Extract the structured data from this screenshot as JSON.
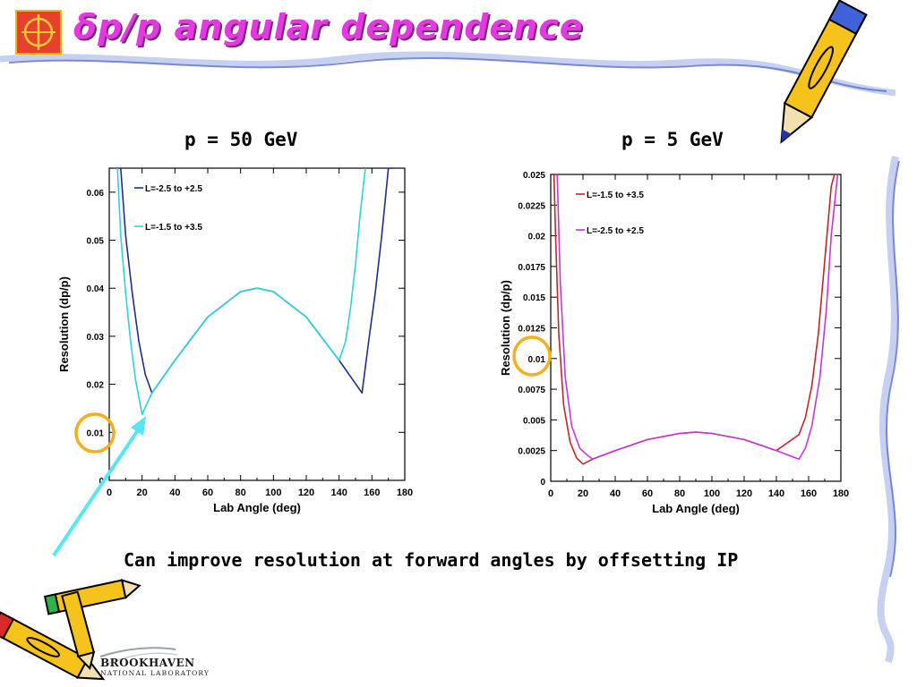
{
  "slide": {
    "title": "δp/p angular dependence",
    "caption": "Can improve resolution at forward angles by offsetting IP",
    "lab_name": "BROOKHAVEN",
    "lab_sub": "NATIONAL LABORATORY",
    "colors": {
      "title": "#e23ae0",
      "circle": "#f2b01e",
      "arrow": "#56e6f5"
    }
  },
  "chart_data": [
    {
      "type": "line",
      "title": "p = 50 GeV",
      "xlabel": "Lab Angle (deg)",
      "ylabel": "Resolution (dp/p)",
      "xlim": [
        0,
        180
      ],
      "ylim": [
        0,
        0.065
      ],
      "x_ticks": [
        0,
        20,
        40,
        60,
        80,
        100,
        120,
        140,
        160,
        180
      ],
      "x_tick_labels": [
        "0",
        "20",
        "40",
        "60",
        "80",
        "100",
        "120",
        "140",
        "160",
        "180"
      ],
      "y_ticks": [
        0,
        0.01,
        0.02,
        0.03,
        0.04,
        0.05,
        0.06
      ],
      "y_tick_labels": [
        "0",
        "0.01",
        "0.02",
        "0.03",
        "0.04",
        "0.05",
        "0.06"
      ],
      "legend_position": "top-left",
      "highlighted_tick": "0.01",
      "series": [
        {
          "name": "L=-2.5 to +2.5",
          "color": "#1f2e8a",
          "x": [
            7,
            10,
            14,
            18,
            22,
            26,
            40,
            60,
            80,
            90,
            100,
            120,
            140,
            154,
            158,
            162,
            166,
            170,
            173
          ],
          "y": [
            0.065,
            0.051,
            0.039,
            0.029,
            0.022,
            0.0182,
            0.025,
            0.034,
            0.0393,
            0.04,
            0.0393,
            0.034,
            0.025,
            0.0182,
            0.029,
            0.039,
            0.051,
            0.065,
            0.065
          ]
        },
        {
          "name": "L=-1.5 to +3.5",
          "color": "#2ed3d8",
          "x": [
            5,
            7,
            10,
            13,
            16,
            20,
            23,
            26,
            40,
            60,
            80,
            90,
            100,
            120,
            140,
            144,
            147,
            150,
            153,
            156
          ],
          "y": [
            0.065,
            0.051,
            0.039,
            0.029,
            0.021,
            0.0137,
            0.016,
            0.0182,
            0.025,
            0.034,
            0.0393,
            0.04,
            0.0393,
            0.034,
            0.025,
            0.029,
            0.036,
            0.045,
            0.056,
            0.065
          ]
        }
      ]
    },
    {
      "type": "line",
      "title": "p = 5 GeV",
      "xlabel": "Lab Angle (deg)",
      "ylabel": "Resolution (dp/p)",
      "xlim": [
        0,
        180
      ],
      "ylim": [
        0,
        0.025
      ],
      "x_ticks": [
        0,
        20,
        40,
        60,
        80,
        100,
        120,
        140,
        160,
        180
      ],
      "x_tick_labels": [
        "0",
        "20",
        "40",
        "60",
        "80",
        "100",
        "120",
        "140",
        "160",
        "180"
      ],
      "y_ticks": [
        0,
        0.0025,
        0.005,
        0.0075,
        0.01,
        0.0125,
        0.015,
        0.0175,
        0.02,
        0.0225,
        0.025
      ],
      "y_tick_labels": [
        "0",
        "0.0025",
        "0.005",
        "0.0075",
        "0.01",
        "0.0125",
        "0.015",
        "0.0175",
        "0.02",
        "0.0225",
        "0.025"
      ],
      "legend_position": "top-left",
      "highlighted_tick": "0.01",
      "series": [
        {
          "name": "L=-1.5 to +3.5",
          "color": "#c0272d",
          "x": [
            2,
            3,
            5,
            8,
            12,
            16,
            20,
            26,
            40,
            60,
            80,
            90,
            100,
            120,
            140,
            154,
            158,
            162,
            166,
            170,
            174,
            176
          ],
          "y": [
            0.025,
            0.02,
            0.012,
            0.0062,
            0.0032,
            0.0019,
            0.0014,
            0.0018,
            0.0025,
            0.0034,
            0.0039,
            0.004,
            0.0039,
            0.0034,
            0.0025,
            0.0038,
            0.0052,
            0.0078,
            0.012,
            0.018,
            0.024,
            0.025
          ]
        },
        {
          "name": "L=-2.5 to +2.5",
          "color": "#c23ad4",
          "x": [
            4,
            6,
            9,
            13,
            18,
            22,
            26,
            40,
            60,
            80,
            90,
            100,
            120,
            140,
            154,
            158,
            162,
            167,
            171,
            174,
            178
          ],
          "y": [
            0.025,
            0.016,
            0.0085,
            0.0045,
            0.0027,
            0.0022,
            0.0018,
            0.0025,
            0.0034,
            0.0039,
            0.004,
            0.0039,
            0.0034,
            0.0025,
            0.0018,
            0.0027,
            0.0045,
            0.0085,
            0.014,
            0.02,
            0.025
          ]
        }
      ]
    }
  ]
}
